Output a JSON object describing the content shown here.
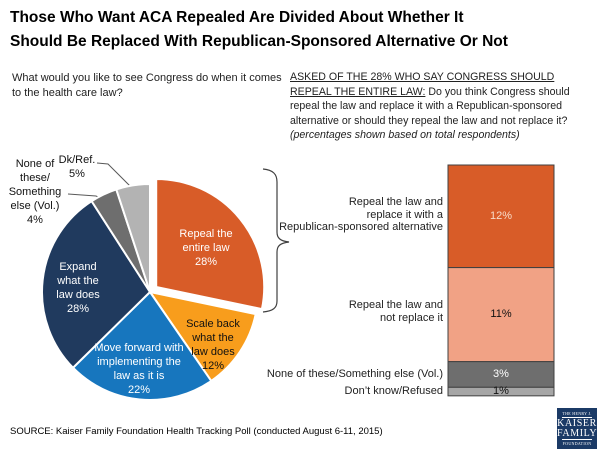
{
  "header": {
    "title": "Those Who Want ACA Repealed Are Divided About Whether It\nShould Be Replaced With Republican-Sponsored Alternative Or Not"
  },
  "pie_section": {
    "question": "What would you like to see Congress do when it comes to the health care law?"
  },
  "bar_section": {
    "question_heading": "ASKED OF THE 28% WHO SAY CONGRESS SHOULD REPEAL THE ENTIRE LAW:",
    "question_body": " Do you think Congress should repeal the law and replace it with a Republican-sponsored alternative or should they repeal the law and not replace it? ",
    "question_note": "(percentages shown based on total respondents)"
  },
  "chart_data": [
    {
      "type": "pie",
      "title": "What would you like to see Congress do when it comes to the health care law?",
      "slices": [
        {
          "label": "Repeal the entire law",
          "value": 28,
          "display": "Repeal the\nentire law\n28%",
          "color": "#D85C28",
          "text_color": "#FFFFFF",
          "exploded": true
        },
        {
          "label": "Scale back what the law does",
          "value": 12,
          "display": "Scale back\nwhat the\nlaw does\n12%",
          "color": "#F89D1C",
          "text_color": "#111111",
          "exploded": false
        },
        {
          "label": "Move forward with implementing the law as it is",
          "value": 22,
          "display": "Move forward with\nimplementing the\nlaw as it is\n22%",
          "color": "#1776BE",
          "text_color": "#FFFFFF",
          "exploded": false
        },
        {
          "label": "Expand what the law does",
          "value": 28,
          "display": "Expand\nwhat the\nlaw does\n28%",
          "color": "#203A5E",
          "text_color": "#FFFFFF",
          "exploded": false
        },
        {
          "label": "None of these/Something else (Vol.)",
          "value": 4,
          "display": "None of\nthese/\nSomething\nelse (Vol.)\n4%",
          "color": "#6E6E6E",
          "text_color": "#111111",
          "exploded": false
        },
        {
          "label": "Dk/Ref.",
          "value": 5,
          "display": "Dk/Ref.\n5%",
          "color": "#B3B3B3",
          "text_color": "#111111",
          "exploded": false
        }
      ]
    },
    {
      "type": "bar",
      "stacked": true,
      "unit": "%",
      "segments": [
        {
          "label": "Repeal the law and\nreplace it with a\nRepublican-sponsored alternative",
          "value": 12,
          "value_label": "12%",
          "color": "#D85C28",
          "value_color": "#F8DCC9"
        },
        {
          "label": "Repeal the law and\nnot replace it",
          "value": 11,
          "value_label": "11%",
          "color": "#F1A285",
          "value_color": "#111111"
        },
        {
          "label": "None of these/Something else (Vol.)",
          "value": 3,
          "value_label": "3%",
          "color": "#6E6E6E",
          "value_color": "#FFFFFF"
        },
        {
          "label": "Don’t know/Refused",
          "value": 1,
          "value_label": "1%",
          "color": "#A6A6A6",
          "value_color": "#111111"
        }
      ]
    }
  ],
  "footer": {
    "source": "SOURCE: Kaiser Family Foundation Health Tracking Poll (conducted August 6-11, 2015)"
  },
  "logo": {
    "line1": "THE HENRY J.",
    "line2": "KAISER",
    "line3": "FAMILY",
    "line4": "FOUNDATION",
    "color": "#1B3A66"
  }
}
